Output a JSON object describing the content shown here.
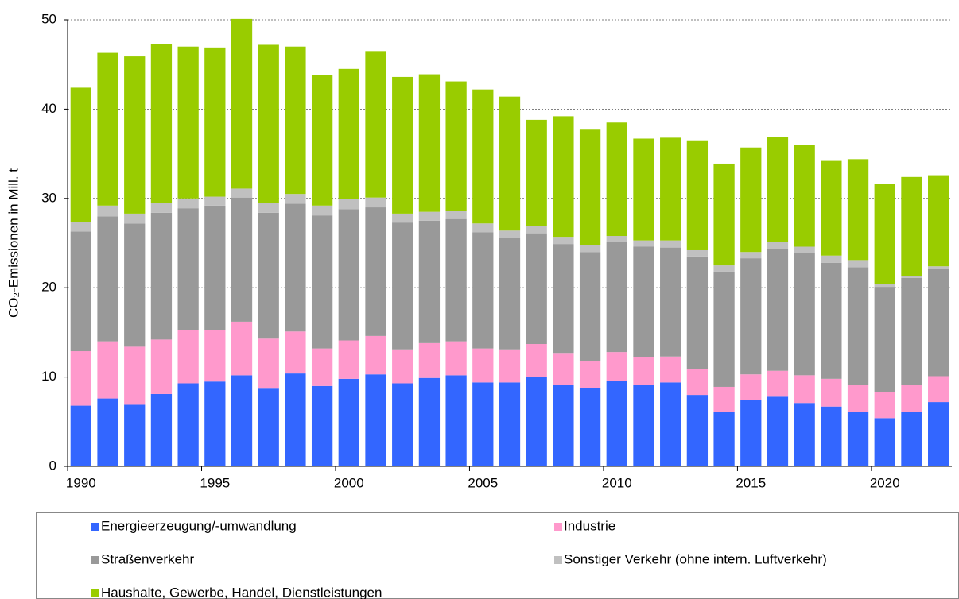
{
  "chart_data": {
    "type": "stacked-bar",
    "y_label": "CO₂-Emissionen in Mill. t",
    "categories": [
      "1990",
      null,
      null,
      null,
      null,
      "1995",
      null,
      null,
      null,
      null,
      "2000",
      null,
      null,
      null,
      null,
      "2005",
      null,
      null,
      null,
      null,
      "2010",
      null,
      null,
      null,
      null,
      "2015",
      null,
      null,
      null,
      null,
      "2020",
      null,
      null
    ],
    "series": [
      {
        "name": "Energieerzeugung/-umwandlung",
        "color": "#3366ff",
        "values": [
          6.8,
          7.6,
          6.9,
          8.1,
          9.3,
          9.5,
          10.2,
          8.7,
          10.4,
          9.0,
          9.8,
          10.3,
          9.3,
          9.9,
          10.2,
          9.4,
          9.4,
          10.0,
          9.1,
          8.8,
          9.6,
          9.1,
          9.4,
          8.0,
          6.1,
          7.4,
          7.8,
          7.1,
          6.7,
          6.1,
          5.4,
          6.1,
          7.2
        ]
      },
      {
        "name": "Industrie",
        "color": "#ff99cc",
        "values": [
          6.1,
          6.4,
          6.5,
          6.1,
          6.0,
          5.8,
          6.0,
          5.6,
          4.7,
          4.2,
          4.3,
          4.3,
          3.8,
          3.9,
          3.8,
          3.8,
          3.7,
          3.7,
          3.6,
          3.0,
          3.2,
          3.1,
          2.9,
          2.9,
          2.8,
          2.9,
          2.9,
          3.1,
          3.1,
          3.0,
          2.9,
          3.0,
          2.9
        ]
      },
      {
        "name": "Straßenverkehr",
        "color": "#999999",
        "values": [
          13.4,
          14.0,
          13.8,
          14.2,
          13.6,
          13.9,
          13.9,
          14.1,
          14.3,
          14.9,
          14.7,
          14.4,
          14.2,
          13.7,
          13.7,
          13.0,
          12.5,
          12.4,
          12.2,
          12.2,
          12.3,
          12.4,
          12.2,
          12.6,
          12.9,
          13.0,
          13.6,
          13.7,
          13.0,
          13.2,
          11.8,
          12.0,
          12.0
        ]
      },
      {
        "name": "Sonstiger Verkehr (ohne intern. Luftverkehr)",
        "color": "#c0c0c0",
        "values": [
          1.1,
          1.2,
          1.1,
          1.1,
          1.1,
          1.0,
          1.0,
          1.1,
          1.1,
          1.1,
          1.1,
          1.1,
          1.0,
          1.0,
          0.9,
          1.0,
          0.8,
          0.8,
          0.8,
          0.8,
          0.7,
          0.7,
          0.8,
          0.7,
          0.7,
          0.7,
          0.8,
          0.7,
          0.8,
          0.8,
          0.3,
          0.2,
          0.3
        ]
      },
      {
        "name": "Haushalte, Gewerbe, Handel, Dienstleistungen",
        "color": "#99cc00",
        "values": [
          15.0,
          17.1,
          17.6,
          17.8,
          17.0,
          16.7,
          19.0,
          17.7,
          16.5,
          14.6,
          14.6,
          16.4,
          15.3,
          15.4,
          14.5,
          15.0,
          15.0,
          11.9,
          13.5,
          12.9,
          12.7,
          11.4,
          11.5,
          12.3,
          11.4,
          11.7,
          11.8,
          11.4,
          10.6,
          11.3,
          11.2,
          11.1,
          10.2
        ]
      }
    ],
    "ylim": [
      0,
      50
    ],
    "yticks": [
      0,
      10,
      20,
      30,
      40,
      50
    ],
    "grid": true
  }
}
